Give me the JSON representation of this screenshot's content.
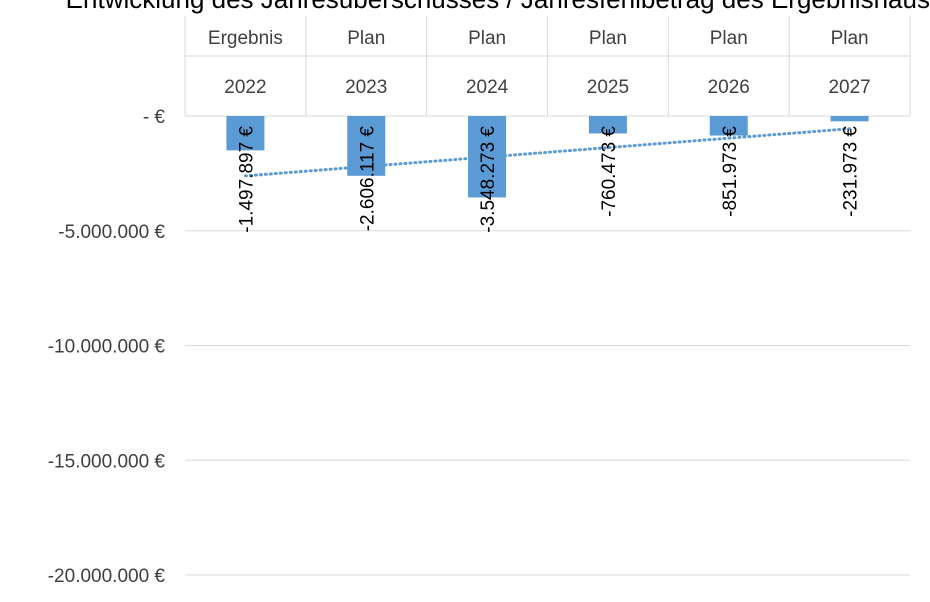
{
  "chart_data": {
    "type": "bar",
    "title": "",
    "title_partial": "Entwicklung des Jahresüberschusses / Jahresfehlbetrag des Ergebnishaushaltes",
    "categories": [
      {
        "label": "Ergebnis",
        "year": "2022"
      },
      {
        "label": "Plan",
        "year": "2023"
      },
      {
        "label": "Plan",
        "year": "2024"
      },
      {
        "label": "Plan",
        "year": "2025"
      },
      {
        "label": "Plan",
        "year": "2026"
      },
      {
        "label": "Plan",
        "year": "2027"
      }
    ],
    "values": [
      -1497897,
      -2606117,
      -3548273,
      -760473,
      -851973,
      -231973
    ],
    "data_labels": [
      "-1.497.897 €",
      "-2.606.117 €",
      "-3.548.273 €",
      "-760.473 €",
      "-851.973 €",
      "-231.973 €"
    ],
    "ylim": [
      -20000000,
      0
    ],
    "yticks": [
      0,
      -5000000,
      -10000000,
      -15000000,
      -20000000
    ],
    "ytick_labels": [
      "-   €",
      "-5.000.000 €",
      "-10.000.000 €",
      "-15.000.000 €",
      "-20.000.000 €"
    ],
    "trendline": {
      "type": "linear",
      "style": "dotted"
    },
    "grid": true,
    "colors": {
      "bar": "#5b9bd5",
      "trend": "#5b9bd5",
      "grid": "#d9d9d9",
      "axis_text": "#404040"
    }
  }
}
